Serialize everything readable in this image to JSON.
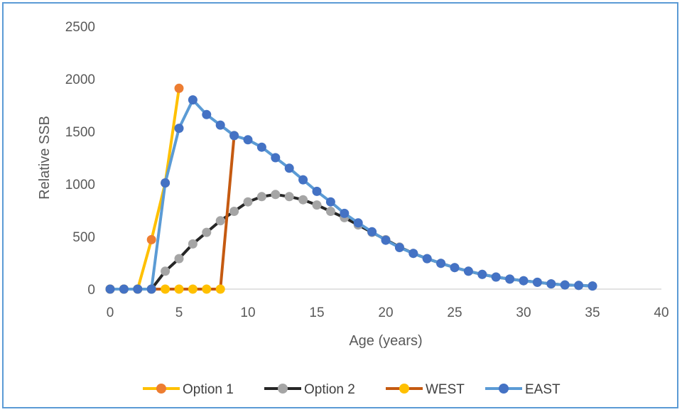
{
  "chart_data": {
    "type": "line",
    "title": "",
    "xlabel": "Age (years)",
    "ylabel": "Relative SSB",
    "xlim": [
      0,
      40
    ],
    "ylim": [
      0,
      2500
    ],
    "xticks": [
      0,
      5,
      10,
      15,
      20,
      25,
      30,
      35,
      40
    ],
    "yticks": [
      0,
      500,
      1000,
      1500,
      2000,
      2500
    ],
    "grid": false,
    "legend_position": "bottom",
    "series": [
      {
        "name": "Option 1",
        "line_color": "#ffc000",
        "marker_color": "#ed7d31",
        "x": [
          0,
          1,
          2,
          3,
          4,
          5
        ],
        "y": [
          0,
          0,
          0,
          470,
          1010,
          1910
        ]
      },
      {
        "name": "Option 2",
        "line_color": "#262626",
        "marker_color": "#a5a5a5",
        "x": [
          0,
          1,
          2,
          3,
          4,
          5,
          6,
          7,
          8,
          9,
          10,
          11,
          12,
          13,
          14,
          15,
          16,
          17,
          18,
          19,
          20,
          21,
          22,
          23,
          24,
          25,
          26,
          27,
          28,
          29,
          30,
          31,
          32,
          33,
          34,
          35
        ],
        "y": [
          0,
          0,
          0,
          0,
          170,
          290,
          430,
          540,
          650,
          740,
          830,
          880,
          900,
          880,
          850,
          800,
          740,
          680,
          610,
          540,
          470,
          400,
          340,
          290,
          245,
          205,
          170,
          140,
          115,
          95,
          80,
          65,
          50,
          40,
          35,
          30
        ]
      },
      {
        "name": "WEST",
        "line_color": "#c55a11",
        "marker_color": "#ffc000",
        "x": [
          0,
          1,
          2,
          3,
          4,
          5,
          6,
          7,
          8,
          9
        ],
        "y": [
          0,
          0,
          0,
          0,
          0,
          0,
          0,
          0,
          0,
          1460
        ]
      },
      {
        "name": "EAST",
        "line_color": "#5b9bd5",
        "marker_color": "#4472c4",
        "x": [
          0,
          1,
          2,
          3,
          4,
          5,
          6,
          7,
          8,
          9,
          10,
          11,
          12,
          13,
          14,
          15,
          16,
          17,
          18,
          19,
          20,
          21,
          22,
          23,
          24,
          25,
          26,
          27,
          28,
          29,
          30,
          31,
          32,
          33,
          34,
          35
        ],
        "y": [
          0,
          0,
          0,
          0,
          1010,
          1530,
          1800,
          1660,
          1560,
          1460,
          1420,
          1350,
          1250,
          1150,
          1040,
          930,
          830,
          720,
          630,
          545,
          465,
          395,
          340,
          290,
          245,
          205,
          170,
          140,
          115,
          95,
          80,
          65,
          50,
          40,
          35,
          30
        ]
      }
    ]
  }
}
